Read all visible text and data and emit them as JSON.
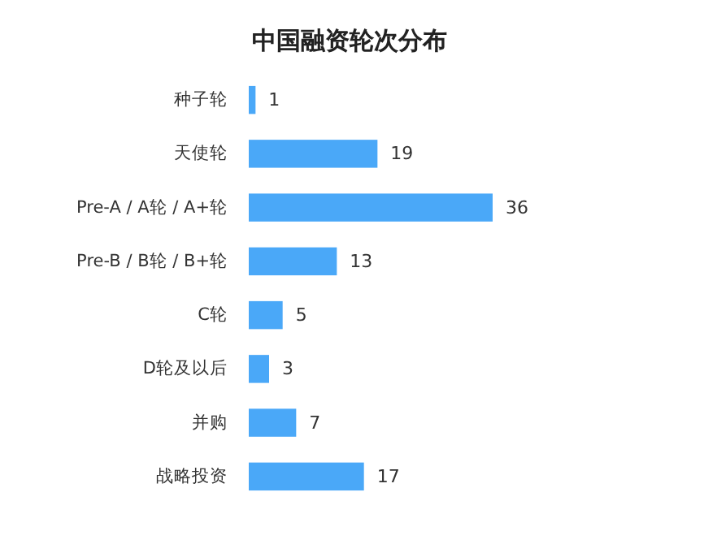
{
  "chart_data": {
    "type": "bar",
    "orientation": "horizontal",
    "title": "中国融资轮次分布",
    "categories": [
      "种子轮",
      "天使轮",
      "Pre-A / A轮 / A+轮",
      "Pre-B / B轮 / B+轮",
      "C轮",
      "D轮及以后",
      "并购",
      "战略投资"
    ],
    "values": [
      1,
      19,
      36,
      13,
      5,
      3,
      7,
      17
    ],
    "color": "#4aa8f8",
    "data_labels": true
  }
}
